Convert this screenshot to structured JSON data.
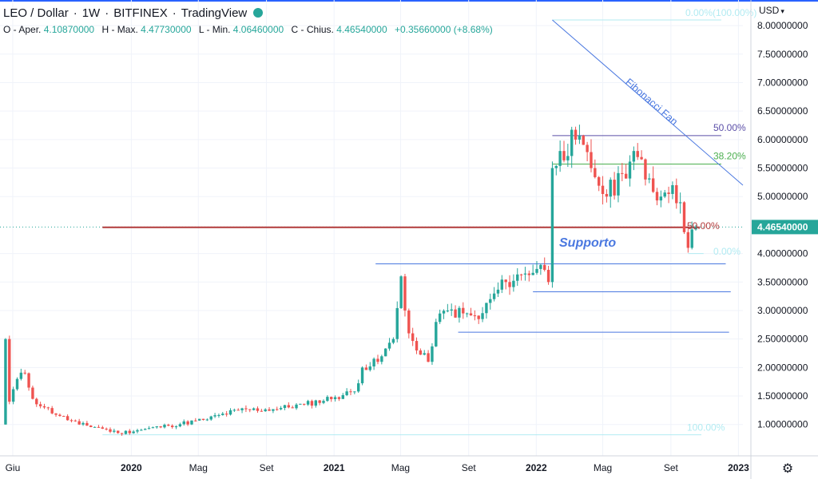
{
  "legend": {
    "symbol": "LEO / Dollar",
    "interval": "1W",
    "exchange": "BITFINEX",
    "source": "TradingView",
    "status_color": "#26a69a"
  },
  "ohlc": {
    "open_label": "O - Aper.",
    "open": "4.10870000",
    "high_label": "H - Max.",
    "high": "4.47730000",
    "low_label": "L - Min.",
    "low": "4.06460000",
    "close_label": "C - Chius.",
    "close": "4.46540000",
    "change": "+0.35660000 (+8.68%)"
  },
  "currency": "USD",
  "settings_icon": "gear-icon",
  "chart_data": {
    "type": "candlestick",
    "ylim": [
      0.45,
      8.45
    ],
    "y_ticks": [
      {
        "value": 8.0,
        "label": "8.00000000"
      },
      {
        "value": 7.5,
        "label": "7.50000000"
      },
      {
        "value": 7.0,
        "label": "7.00000000"
      },
      {
        "value": 6.5,
        "label": "6.50000000"
      },
      {
        "value": 6.0,
        "label": "6.00000000"
      },
      {
        "value": 5.5,
        "label": "5.50000000"
      },
      {
        "value": 5.0,
        "label": "5.00000000"
      },
      {
        "value": 4.0,
        "label": "4.00000000"
      },
      {
        "value": 3.5,
        "label": "3.50000000"
      },
      {
        "value": 3.0,
        "label": "3.00000000"
      },
      {
        "value": 2.5,
        "label": "2.50000000"
      },
      {
        "value": 2.0,
        "label": "2.00000000"
      },
      {
        "value": 1.5,
        "label": "1.50000000"
      },
      {
        "value": 1.0,
        "label": "1.00000000"
      }
    ],
    "x_ticks": [
      {
        "date": "2019-06-01",
        "label": "Giu",
        "bold": false
      },
      {
        "date": "2020-01-01",
        "label": "2020",
        "bold": true
      },
      {
        "date": "2020-05-01",
        "label": "Mag",
        "bold": false
      },
      {
        "date": "2020-09-01",
        "label": "Set",
        "bold": false
      },
      {
        "date": "2021-01-01",
        "label": "2021",
        "bold": true
      },
      {
        "date": "2021-05-01",
        "label": "Mag",
        "bold": false
      },
      {
        "date": "2021-09-01",
        "label": "Set",
        "bold": false
      },
      {
        "date": "2022-01-01",
        "label": "2022",
        "bold": true
      },
      {
        "date": "2022-05-01",
        "label": "Mag",
        "bold": false
      },
      {
        "date": "2022-09-01",
        "label": "Set",
        "bold": false
      },
      {
        "date": "2023-01-01",
        "label": "2023",
        "bold": true
      }
    ],
    "x_range": [
      "2019-05-09",
      "2023-01-09"
    ],
    "last_price": {
      "value": 4.4654,
      "label": "4.46540000",
      "color": "#26a69a"
    },
    "colors": {
      "up": "#26a69a",
      "down": "#ef5350",
      "fib_cyan": "#b2ebf2",
      "trend": "#4a78e0"
    },
    "keypoints": [
      {
        "date": "2019-05-12",
        "price": 1.0
      },
      {
        "date": "2019-05-19",
        "price": 2.5
      },
      {
        "date": "2019-05-26",
        "price": 1.4
      },
      {
        "date": "2019-06-09",
        "price": 1.8
      },
      {
        "date": "2019-06-23",
        "price": 1.9
      },
      {
        "date": "2019-07-07",
        "price": 1.45
      },
      {
        "date": "2019-07-28",
        "price": 1.3
      },
      {
        "date": "2019-08-25",
        "price": 1.15
      },
      {
        "date": "2019-09-29",
        "price": 1.0
      },
      {
        "date": "2019-11-03",
        "price": 0.95
      },
      {
        "date": "2019-12-08",
        "price": 0.85
      },
      {
        "date": "2020-01-12",
        "price": 0.9
      },
      {
        "date": "2020-03-08",
        "price": 0.98
      },
      {
        "date": "2020-05-10",
        "price": 1.08
      },
      {
        "date": "2020-07-12",
        "price": 1.25
      },
      {
        "date": "2020-09-13",
        "price": 1.27
      },
      {
        "date": "2020-11-08",
        "price": 1.35
      },
      {
        "date": "2021-01-03",
        "price": 1.48
      },
      {
        "date": "2021-02-07",
        "price": 1.58
      },
      {
        "date": "2021-02-21",
        "price": 2.0
      },
      {
        "date": "2021-03-21",
        "price": 2.1
      },
      {
        "date": "2021-04-18",
        "price": 2.5
      },
      {
        "date": "2021-05-02",
        "price": 3.6
      },
      {
        "date": "2021-05-16",
        "price": 2.6
      },
      {
        "date": "2021-05-30",
        "price": 2.3
      },
      {
        "date": "2021-06-20",
        "price": 2.1
      },
      {
        "date": "2021-07-04",
        "price": 2.8
      },
      {
        "date": "2021-07-25",
        "price": 3.0
      },
      {
        "date": "2021-08-22",
        "price": 2.95
      },
      {
        "date": "2021-09-19",
        "price": 2.85
      },
      {
        "date": "2021-10-10",
        "price": 3.2
      },
      {
        "date": "2021-11-07",
        "price": 3.5
      },
      {
        "date": "2021-12-12",
        "price": 3.65
      },
      {
        "date": "2022-01-09",
        "price": 3.8
      },
      {
        "date": "2022-01-23",
        "price": 3.5
      },
      {
        "date": "2022-01-30",
        "price": 5.5
      },
      {
        "date": "2022-02-13",
        "price": 5.8
      },
      {
        "date": "2022-03-13",
        "price": 6.0
      },
      {
        "date": "2022-04-10",
        "price": 5.5
      },
      {
        "date": "2022-05-08",
        "price": 5.0
      },
      {
        "date": "2022-06-05",
        "price": 5.4
      },
      {
        "date": "2022-06-26",
        "price": 5.8
      },
      {
        "date": "2022-07-17",
        "price": 5.3
      },
      {
        "date": "2022-08-14",
        "price": 5.0
      },
      {
        "date": "2022-09-04",
        "price": 5.2
      },
      {
        "date": "2022-09-18",
        "price": 4.9
      },
      {
        "date": "2022-10-02",
        "price": 4.1
      },
      {
        "date": "2022-10-16",
        "price": 4.47
      }
    ],
    "annotations": {
      "fib_fan_label": "Fibonacci Fan",
      "support_label": "Supporto",
      "fib_top_label": "0.00%(100.00%)",
      "fib_bottom_label": "100.00%",
      "fib_zero_label": "0.00%",
      "fan_50_label": "50.00%",
      "fan_382_label": "38.20%",
      "retr_50_label": "50.00%"
    },
    "drawings": {
      "fib_top": {
        "from": "2022-01-30",
        "to": "2022-12-01",
        "price": 8.1
      },
      "fib_bottom": {
        "from": "2019-11-10",
        "to": "2022-10-26",
        "price": 0.82
      },
      "fib_zero": {
        "from": "2022-10-02",
        "to": "2022-10-30",
        "price": 4.0
      },
      "fan_50": {
        "from": "2022-01-30",
        "to": "2022-12-01",
        "price": 6.07
      },
      "fan_382": {
        "from": "2022-01-30",
        "to": "2022-12-01",
        "price": 5.57
      },
      "support": {
        "from": "2019-11-10",
        "to": "2022-10-23",
        "price": 4.46
      },
      "h1": {
        "from": "2021-03-17",
        "to": "2022-12-09",
        "price": 3.82
      },
      "h2": {
        "from": "2021-12-26",
        "to": "2022-12-18",
        "price": 3.33
      },
      "h3": {
        "from": "2021-08-13",
        "to": "2022-12-15",
        "price": 2.62
      },
      "fan_line": {
        "from_date": "2022-01-30",
        "from_price": 8.1,
        "to_date": "2023-01-09",
        "to_price": 5.2
      }
    }
  }
}
